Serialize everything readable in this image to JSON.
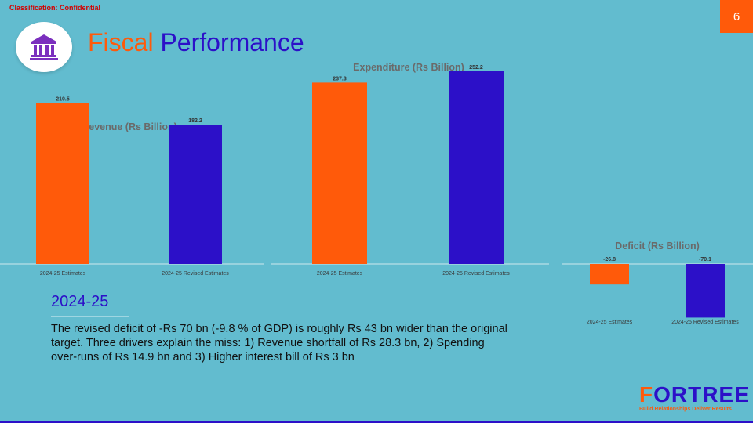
{
  "header": {
    "classification": "Classification: Confidential",
    "page_number": "6",
    "title_word1": "Fiscal",
    "title_word2": "Performance",
    "logo_icon": "bank-building-icon"
  },
  "colors": {
    "orange": "#ff5a0a",
    "purple": "#2c10c8",
    "background": "#62bccf"
  },
  "chart_data": [
    {
      "type": "bar",
      "title": "Revenue (Rs Billion)",
      "categories": [
        "2024-25 Estimates",
        "2024-25 Revised Estimates"
      ],
      "values": [
        210.5,
        182.2
      ],
      "data_labels": [
        "210.5",
        "182.2"
      ],
      "colors": [
        "#ff5a0a",
        "#2c10c8"
      ]
    },
    {
      "type": "bar",
      "title": "Expenditure (Rs Billion)",
      "categories": [
        "2024-25 Estimates",
        "2024-25 Revised Estimates"
      ],
      "values": [
        237.3,
        252.2
      ],
      "data_labels": [
        "237.3",
        "252.2"
      ],
      "colors": [
        "#ff5a0a",
        "#2c10c8"
      ]
    },
    {
      "type": "bar",
      "title": "Deficit (Rs Billion)",
      "categories": [
        "2024-25 Estimates",
        "2024-25 Revised Estimates"
      ],
      "values": [
        -26.8,
        -70.1
      ],
      "data_labels": [
        "-26.8",
        "-70.1"
      ],
      "colors": [
        "#ff5a0a",
        "#2c10c8"
      ]
    }
  ],
  "section": {
    "heading": "2024-25",
    "summary": "The revised deficit of -Rs 70 bn (-9.8 % of GDP) is roughly Rs 43 bn wider than the original target. Three drivers explain the miss: 1) Revenue shortfall of Rs 28.3 bn, 2) Spending over-runs of Rs 14.9 bn and 3) Higher interest bill of Rs 3 bn"
  },
  "brand": {
    "name_first": "F",
    "name_rest": "ORTREE",
    "tagline": "Build Relationships Deliver Results"
  }
}
